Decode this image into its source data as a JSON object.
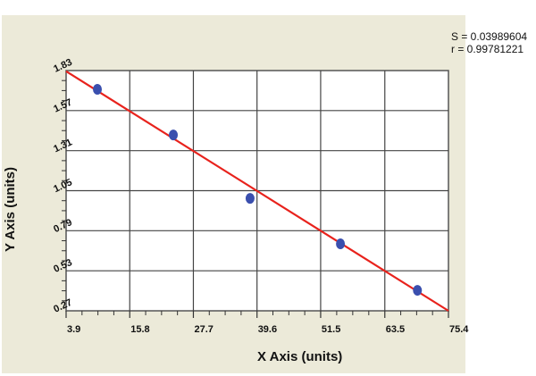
{
  "stats": {
    "s_label": "S = 0.03989604",
    "r_label": "r = 0.99781221"
  },
  "axes": {
    "x_title": "X Axis (units)",
    "y_title": "Y Axis (units)",
    "x_ticks": [
      "3.9",
      "15.8",
      "27.7",
      "39.6",
      "51.5",
      "63.5",
      "75.4"
    ],
    "y_ticks": [
      "1.83",
      "1.57",
      "1.31",
      "1.05",
      "0.79",
      "0.53",
      "0.27"
    ]
  },
  "colors": {
    "background_panel": "#ecead9",
    "plot_bg": "#ffffff",
    "grid": "#333333",
    "fit_line": "#e8221c",
    "points": "#3a4fae"
  },
  "chart_data": {
    "type": "scatter",
    "title": "",
    "xlabel": "X Axis (units)",
    "ylabel": "Y Axis (units)",
    "xlim": [
      3.9,
      75.4
    ],
    "ylim": [
      0.27,
      1.83
    ],
    "x_ticks": [
      3.9,
      15.8,
      27.7,
      39.6,
      51.5,
      63.5,
      75.4
    ],
    "y_ticks": [
      0.27,
      0.53,
      0.79,
      1.05,
      1.31,
      1.57,
      1.83
    ],
    "grid": true,
    "legend": "none",
    "series": [
      {
        "name": "data points",
        "type": "scatter",
        "x": [
          9.75,
          23.95,
          38.3,
          55.2,
          69.6
        ],
        "y": [
          1.708,
          1.412,
          1.0,
          0.705,
          0.403
        ]
      },
      {
        "name": "linear fit",
        "type": "line",
        "x": [
          3.9,
          75.4
        ],
        "y": [
          1.825,
          0.27
        ]
      }
    ],
    "annotations": [
      "S = 0.03989604",
      "r = 0.99781221"
    ]
  }
}
